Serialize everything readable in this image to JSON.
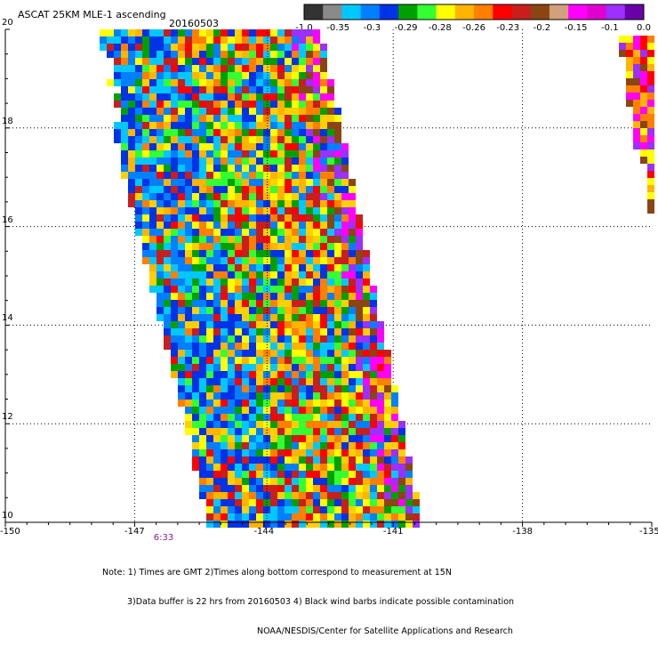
{
  "header": {
    "title": "ASCAT 25KM MLE-1 ascending",
    "date": "20160503"
  },
  "colorbar": {
    "labels": [
      "-1.0",
      "-0.35",
      "-0.3",
      "-0.29",
      "-0.28",
      "-0.26",
      "-0.23",
      "-0.2",
      "-0.15",
      "-0.1",
      "0.0"
    ],
    "colors": [
      "#333333",
      "#8a8a8a",
      "#00c8ff",
      "#0080ff",
      "#0032e6",
      "#00a000",
      "#33ff33",
      "#ffff00",
      "#ffb400",
      "#ff7f00",
      "#ff0000",
      "#c81e1e",
      "#8b4513",
      "#d2a07a",
      "#ff00ff",
      "#e000d0",
      "#9b30ff",
      "#6a00a8"
    ]
  },
  "axes": {
    "x_ticks": [
      "-150",
      "-147",
      "-144",
      "-141",
      "-138",
      "-135"
    ],
    "y_ticks": [
      "20",
      "18",
      "16",
      "14",
      "12",
      "10"
    ],
    "x_range": [
      -150,
      -135
    ],
    "y_range": [
      10,
      20
    ]
  },
  "time_label": "6:33",
  "notes": [
    "Note: 1) Times are GMT 2)Times along bottom correspond to measurement at 15N",
    "3)Data buffer is 22 hrs from 20160503 4) Black wind barbs indicate possible contamination",
    "NOAA/NESDIS/Center for Satellite Applications and Research"
  ],
  "palette": [
    "#0032e6",
    "#0080ff",
    "#00c8ff",
    "#00a000",
    "#33ff33",
    "#ffff00",
    "#ffd000",
    "#ffb400",
    "#ff7f00",
    "#ff0000",
    "#c81e1e",
    "#8b4513",
    "#ff00ff",
    "#9b30ff"
  ]
}
